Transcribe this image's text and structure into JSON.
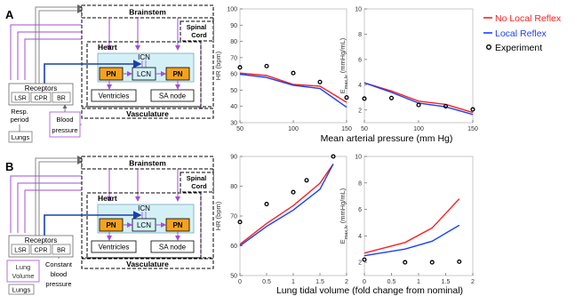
{
  "colors": {
    "no_local_reflex": "#ff2020",
    "local_reflex": "#1a3fff",
    "experiment": "#000000",
    "nerve": "#a04fd6",
    "heart_fill": "#d4f0f7",
    "neuron_fill": "#f59a1a",
    "pn_fill": "#f3a21d",
    "signal_blue": "#1a3fb0"
  },
  "panel_a": {
    "letter": "A",
    "diagram": {
      "brainstem": "Brainstem",
      "spinal": "Spinal",
      "cord": "Cord",
      "heart": "Heart",
      "icn": "ICN",
      "pn_left": "PN",
      "lcn": "LCN",
      "pn_right": "PN",
      "receptors": "Receptors",
      "lsr": "LSR",
      "cpr": "CPR",
      "br": "BR",
      "resp": "Resp.",
      "period": "period",
      "lungs": "Lungs",
      "blood": "Blood",
      "pressure": "pressure",
      "ventricles": "Ventricles",
      "sa_node": "SA node",
      "vasculature": "Vasculature"
    },
    "shared_xlabel": "Mean arterial pressure (mm Hg)"
  },
  "panel_b": {
    "letter": "B",
    "diagram": {
      "brainstem": "Brainstem",
      "spinal": "Spinal",
      "cord": "Cord",
      "heart": "Heart",
      "icn": "ICN",
      "pn_left": "PN",
      "lcn": "LCN",
      "pn_right": "PN",
      "receptors": "Receptors",
      "lsr": "LSR",
      "cpr": "CPR",
      "br": "BR",
      "lung": "Lung",
      "volume": "Volume",
      "lungs": "Lungs",
      "constant": "Constant",
      "blood": "blood",
      "pressure": "pressure",
      "ventricles": "Ventricles",
      "sa_node": "SA node",
      "vasculature": "Vasculature"
    },
    "shared_xlabel": "Lung tidal volume (fold change from nominal)"
  },
  "legend": {
    "items": [
      {
        "label": "No Local Reflex",
        "mark": "line",
        "color": "#ff2020"
      },
      {
        "label": "Local Reflex",
        "mark": "line",
        "color": "#1a3fff"
      },
      {
        "label": "Experiment",
        "mark": "circle",
        "color": "#000000"
      }
    ]
  },
  "chart_data": [
    {
      "id": "a-hr",
      "type": "line",
      "ylabel": "HR (bpm)",
      "xlim": [
        50,
        150
      ],
      "ylim": [
        30,
        100
      ],
      "xticks": [
        50,
        100,
        150
      ],
      "yticks": [
        30,
        40,
        50,
        60,
        70,
        80,
        90,
        100
      ],
      "series": [
        {
          "name": "No Local Reflex",
          "x": [
            50,
            75,
            100,
            125,
            150
          ],
          "y": [
            60.5,
            59,
            53.5,
            52.5,
            42.5
          ]
        },
        {
          "name": "Local Reflex",
          "x": [
            50,
            75,
            100,
            125,
            150
          ],
          "y": [
            59.8,
            57.8,
            53,
            51,
            39.5
          ]
        },
        {
          "name": "Experiment",
          "x": [
            50,
            75,
            100,
            125,
            150
          ],
          "y": [
            64,
            64.8,
            60.5,
            55,
            45.5
          ]
        }
      ]
    },
    {
      "id": "a-emax",
      "type": "line",
      "ylabel": "E",
      "ylabel_sub": "max,lv",
      "ylabel_unit": " (mmHg/mL)",
      "xlim": [
        50,
        150
      ],
      "ylim": [
        1,
        10
      ],
      "xticks": [
        50,
        100,
        150
      ],
      "yticks": [
        2,
        4,
        6,
        8,
        10
      ],
      "series": [
        {
          "name": "No Local Reflex",
          "x": [
            50,
            75,
            100,
            125,
            150
          ],
          "y": [
            4.15,
            3.5,
            2.7,
            2.45,
            1.8
          ]
        },
        {
          "name": "Local Reflex",
          "x": [
            50,
            75,
            100,
            125,
            150
          ],
          "y": [
            4.15,
            3.4,
            2.55,
            2.25,
            1.65
          ]
        },
        {
          "name": "Experiment",
          "x": [
            50,
            75,
            100,
            125,
            150
          ],
          "y": [
            2.9,
            2.95,
            2.4,
            2.3,
            2.05
          ]
        }
      ]
    },
    {
      "id": "b-hr",
      "type": "line",
      "ylabel": "HR (bpm)",
      "xlim": [
        0,
        2
      ],
      "ylim": [
        50,
        90
      ],
      "xticks": [
        0,
        0.5,
        1,
        1.5,
        2
      ],
      "yticks": [
        50,
        60,
        70,
        80,
        90
      ],
      "series": [
        {
          "name": "No Local Reflex",
          "x": [
            0,
            0.5,
            1,
            1.5,
            1.75
          ],
          "y": [
            60.5,
            67.5,
            73.5,
            81,
            87.5
          ]
        },
        {
          "name": "Local Reflex",
          "x": [
            0,
            0.5,
            1,
            1.5,
            1.75
          ],
          "y": [
            60,
            66.5,
            72,
            79,
            87.5
          ]
        },
        {
          "name": "Experiment",
          "x": [
            0,
            0.5,
            1,
            1.25,
            1.75
          ],
          "y": [
            68,
            74,
            78,
            82,
            90
          ]
        }
      ]
    },
    {
      "id": "b-emax",
      "type": "line",
      "ylabel": "E",
      "ylabel_sub": "max,lv",
      "ylabel_unit": " (mmHg/mL)",
      "xlim": [
        0,
        2
      ],
      "ylim": [
        1,
        10
      ],
      "xticks": [
        0,
        0.5,
        1,
        1.5,
        2
      ],
      "yticks": [
        2,
        4,
        6,
        8,
        10
      ],
      "series": [
        {
          "name": "No Local Reflex",
          "x": [
            0,
            0.75,
            1.25,
            1.75
          ],
          "y": [
            2.7,
            3.5,
            4.6,
            6.8
          ]
        },
        {
          "name": "Local Reflex",
          "x": [
            0,
            0.75,
            1.25,
            1.75
          ],
          "y": [
            2.5,
            3.0,
            3.6,
            4.8
          ]
        },
        {
          "name": "Experiment",
          "x": [
            0,
            0.75,
            1.25,
            1.75
          ],
          "y": [
            2.2,
            2.0,
            2.0,
            2.05
          ]
        }
      ]
    }
  ]
}
